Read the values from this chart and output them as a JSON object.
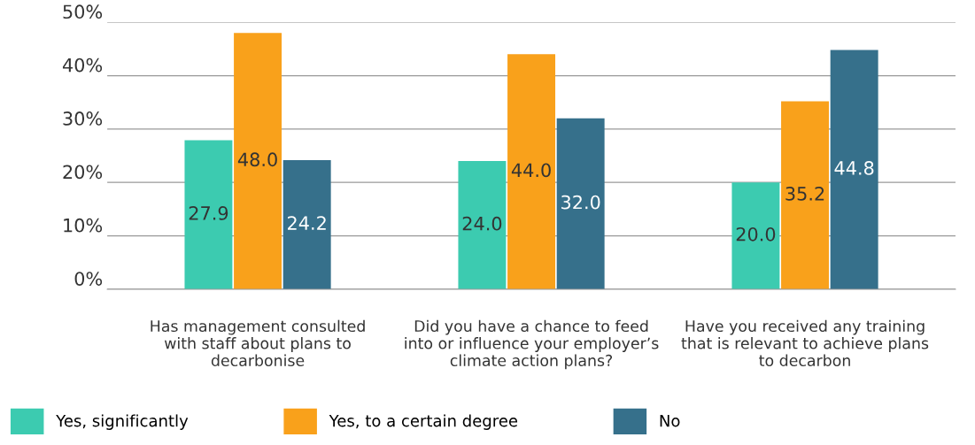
{
  "chart_data": {
    "type": "bar",
    "categories": [
      "Has management consulted\nwith staff about plans to\ndecarbonise",
      "Did you have a chance to feed\ninto or influence your employer’s\nclimate action plans?",
      "Have you received any training\nthat is relevant to achieve plans\nto decarbon"
    ],
    "series": [
      {
        "name": "Yes, significantly",
        "color": "#3ccbb0",
        "values": [
          27.9,
          24.0,
          20.0
        ],
        "value_labels": [
          "27.9",
          "24.0",
          "20.0"
        ]
      },
      {
        "name": "Yes, to a certain degree",
        "color": "#f9a11b",
        "values": [
          48.0,
          44.0,
          35.2
        ],
        "value_labels": [
          "48.0",
          "44.0",
          "35.2"
        ]
      },
      {
        "name": "No",
        "color": "#36708b",
        "values": [
          24.2,
          32.0,
          44.8
        ],
        "value_labels": [
          "24.2",
          "32.0",
          "44.8"
        ]
      }
    ],
    "ylim": [
      0,
      50
    ],
    "yticks": [
      {
        "value": 0,
        "label": "0%"
      },
      {
        "value": 10,
        "label": "10%"
      },
      {
        "value": 20,
        "label": "20%"
      },
      {
        "value": 30,
        "label": "30%"
      },
      {
        "value": 40,
        "label": "40%"
      },
      {
        "value": 50,
        "label": "50%"
      }
    ],
    "grid": "y",
    "legend": "bottom"
  }
}
